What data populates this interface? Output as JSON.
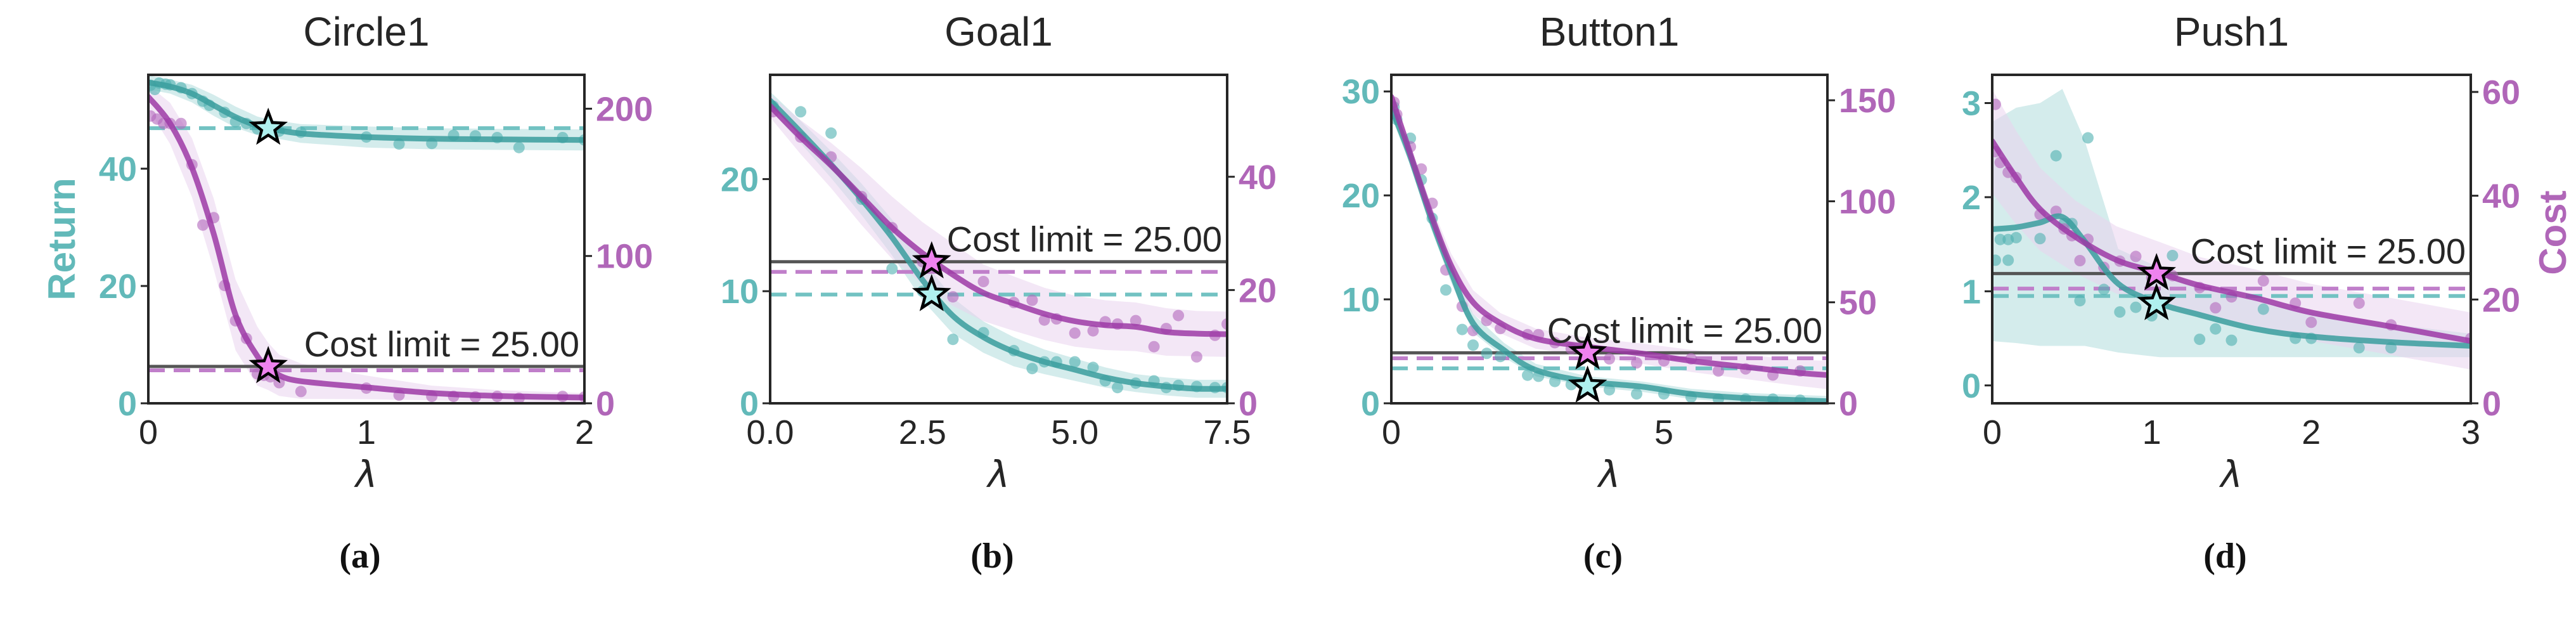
{
  "colors": {
    "return_line": "#3a9e9e",
    "return_point": "#4fb0b0",
    "return_band": "#b8e0df",
    "return_dashed": "#72c2c2",
    "return_axis": "#62b9b9",
    "cost_line": "#9c3aa6",
    "cost_point": "#b367bd",
    "cost_band": "#ead3ee",
    "cost_dashed": "#c07fca",
    "cost_axis": "#b066b8",
    "limit_line": "#555555",
    "star_return": "#aff0ee",
    "star_cost": "#ee82ee",
    "frame": "#262626"
  },
  "chart_data": [
    {
      "type": "line",
      "title": "Circle1",
      "caption": "(a)",
      "xlabel": "λ",
      "ylabel_left": "Return",
      "ylabel_right": "",
      "xlim": [
        0,
        2
      ],
      "ylim_left": [
        0,
        56
      ],
      "ylim_right": [
        0,
        223
      ],
      "xticks": [
        0,
        1,
        2
      ],
      "xtick_labels": [
        "0",
        "1",
        "2"
      ],
      "yticks_left": [
        0,
        20,
        40
      ],
      "yticks_right": [
        0,
        100,
        200
      ],
      "cost_limit": 25,
      "cost_limit_label": "Cost limit = 25.00",
      "return_threshold": 46.9,
      "cost_threshold": 22.4,
      "star": {
        "x": 0.55,
        "return": 46.9,
        "cost": 25
      },
      "series": [
        {
          "name": "Return",
          "axis": "left",
          "x": [
            0,
            0.1,
            0.2,
            0.3,
            0.4,
            0.5,
            0.55,
            0.7,
            1.0,
            1.3,
            1.6,
            2.0
          ],
          "y": [
            54.7,
            54.0,
            52.8,
            50.8,
            48.8,
            47.3,
            46.9,
            46.0,
            45.4,
            45.1,
            45.0,
            44.9
          ],
          "band": [
            1.2,
            1.2,
            1.5,
            1.8,
            1.8,
            1.6,
            1.5,
            1.6,
            1.8,
            1.8,
            1.8,
            1.8
          ],
          "points_x": [
            0.01,
            0.03,
            0.05,
            0.08,
            0.1,
            0.15,
            0.2,
            0.25,
            0.28,
            0.35,
            0.4,
            0.45,
            0.5,
            0.6,
            0.7,
            1.0,
            1.15,
            1.3,
            1.4,
            1.5,
            1.6,
            1.7,
            1.9,
            2.0
          ],
          "points_y": [
            54.2,
            53.5,
            54.6,
            54.4,
            54.3,
            53.8,
            52.8,
            51.5,
            50.8,
            49.6,
            48.0,
            47.7,
            46.8,
            46.4,
            46.2,
            45.4,
            44.2,
            44.3,
            45.7,
            45.6,
            45.3,
            43.6,
            45.3,
            44.9
          ]
        },
        {
          "name": "Cost",
          "axis": "right",
          "x": [
            0,
            0.1,
            0.2,
            0.3,
            0.4,
            0.5,
            0.55,
            0.6,
            0.7,
            1.0,
            1.3,
            1.6,
            2.0
          ],
          "y": [
            208,
            190,
            160,
            115,
            60,
            32,
            25,
            19,
            15,
            10.8,
            7,
            5,
            3.9
          ],
          "band": [
            8,
            14,
            20,
            24,
            24,
            20,
            16,
            14,
            12,
            8,
            5,
            4,
            3
          ],
          "points_x": [
            0.01,
            0.04,
            0.07,
            0.1,
            0.15,
            0.2,
            0.25,
            0.3,
            0.35,
            0.4,
            0.45,
            0.5,
            0.53,
            0.56,
            0.6,
            0.7,
            1.0,
            1.15,
            1.3,
            1.4,
            1.5,
            1.6,
            1.7,
            1.9,
            2.0
          ],
          "points_y": [
            195,
            193,
            190,
            190,
            190,
            162,
            121,
            126,
            80,
            56,
            44,
            20,
            19,
            18,
            14,
            8,
            10.3,
            5.6,
            4.7,
            4.7,
            4.3,
            4.7,
            3.4,
            4.7,
            4.3
          ]
        }
      ]
    },
    {
      "type": "line",
      "title": "Goal1",
      "caption": "(b)",
      "xlabel": "λ",
      "ylabel_left": "",
      "ylabel_right": "",
      "xlim": [
        0,
        7.5
      ],
      "ylim_left": [
        0,
        29.3
      ],
      "ylim_right": [
        0,
        58
      ],
      "xticks": [
        0,
        2.5,
        5,
        7.5
      ],
      "xtick_labels": [
        "0.0",
        "2.5",
        "5.0",
        "7.5"
      ],
      "yticks_left": [
        0,
        10,
        20
      ],
      "yticks_right": [
        0,
        20,
        40
      ],
      "cost_limit": 25,
      "cost_limit_label": "Cost limit = 25.00",
      "return_threshold": 9.7,
      "cost_threshold": 23.2,
      "star": {
        "x": 2.65,
        "return": 9.7,
        "cost": 25
      },
      "series": [
        {
          "name": "Return",
          "axis": "left",
          "x": [
            0,
            0.5,
            1.0,
            1.5,
            2.0,
            2.5,
            3.0,
            3.5,
            4.0,
            4.5,
            5.0,
            5.5,
            6.0,
            6.5,
            7.0,
            7.5
          ],
          "y": [
            27.0,
            24.2,
            21.3,
            18.2,
            14.8,
            11.0,
            7.8,
            5.9,
            4.6,
            3.7,
            3.0,
            2.3,
            1.8,
            1.5,
            1.3,
            1.3
          ],
          "band": [
            0.8,
            1.0,
            1.2,
            1.4,
            1.6,
            1.8,
            1.6,
            1.4,
            1.3,
            1.1,
            1.0,
            0.9,
            0.8,
            0.8,
            0.8,
            0.8
          ],
          "points_x": [
            0.05,
            0.5,
            1.0,
            1.5,
            2.0,
            2.5,
            3.0,
            3.5,
            4.0,
            4.3,
            4.5,
            4.7,
            5.0,
            5.3,
            5.5,
            5.7,
            6.0,
            6.3,
            6.5,
            6.7,
            7.0,
            7.3,
            7.5
          ],
          "points_y": [
            26.5,
            26.0,
            24.1,
            18.2,
            12.0,
            10.0,
            5.7,
            6.3,
            4.7,
            3.1,
            3.7,
            3.7,
            3.7,
            3.2,
            2.0,
            1.4,
            1.8,
            2.0,
            1.4,
            1.6,
            1.5,
            1.4,
            1.4
          ]
        },
        {
          "name": "Cost",
          "axis": "right",
          "x": [
            0,
            0.5,
            1.0,
            1.5,
            2.0,
            2.5,
            3.0,
            3.5,
            4.0,
            4.5,
            5.0,
            5.5,
            6.0,
            6.5,
            7.0,
            7.5
          ],
          "y": [
            52.5,
            47.0,
            42.0,
            36.5,
            31.0,
            26.5,
            22.7,
            19.5,
            17.6,
            15.8,
            14.5,
            13.8,
            13.5,
            12.6,
            12.3,
            12.2
          ],
          "band": [
            2,
            3,
            4,
            5,
            5.5,
            5.5,
            5.5,
            5,
            4.8,
            4.6,
            4.5,
            4.4,
            4.3,
            4.2,
            4.0,
            4.0
          ],
          "points_x": [
            0.05,
            0.5,
            1.0,
            1.5,
            2.0,
            2.5,
            3.0,
            3.5,
            4.0,
            4.3,
            4.5,
            4.7,
            5.0,
            5.3,
            5.5,
            5.7,
            6.0,
            6.3,
            6.5,
            6.7,
            7.0,
            7.3,
            7.5
          ],
          "points_y": [
            51.5,
            47.0,
            43.5,
            36.5,
            31.0,
            25.0,
            18.8,
            21.5,
            17.8,
            18.2,
            14.7,
            14.9,
            12.4,
            12.8,
            14.4,
            14.0,
            14.6,
            10.0,
            13.2,
            15.5,
            8.2,
            12.0,
            14.0
          ]
        }
      ]
    },
    {
      "type": "line",
      "title": "Button1",
      "caption": "(c)",
      "xlabel": "λ",
      "ylabel_left": "",
      "ylabel_right": "",
      "xlim": [
        0,
        8
      ],
      "ylim_left": [
        0,
        31.6
      ],
      "ylim_right": [
        0,
        162.6
      ],
      "xticks": [
        0,
        5
      ],
      "xtick_labels": [
        "0",
        "5"
      ],
      "yticks_left": [
        0,
        10,
        20,
        30
      ],
      "yticks_right": [
        0,
        50,
        100,
        150
      ],
      "cost_limit": 25,
      "cost_limit_label": "Cost limit = 25.00",
      "return_threshold": 3.36,
      "cost_threshold": 22.3,
      "star": {
        "x": 3.6,
        "return": 1.66,
        "cost": 25
      },
      "series": [
        {
          "name": "Return",
          "axis": "left",
          "x": [
            0,
            0.33,
            0.72,
            1.1,
            1.5,
            2.07,
            2.65,
            3.6,
            4.6,
            5.5,
            6.5,
            7.5,
            8.0
          ],
          "y": [
            28.4,
            24.0,
            17.9,
            12.6,
            7.7,
            5.1,
            3.2,
            2.1,
            1.6,
            0.9,
            0.5,
            0.3,
            0.2
          ],
          "band": [
            0.8,
            0.9,
            1.0,
            1.0,
            0.9,
            0.7,
            0.6,
            0.5,
            0.5,
            0.5,
            0.5,
            0.5,
            0.5
          ],
          "points_x": [
            0.05,
            0.1,
            0.35,
            0.55,
            0.75,
            1.0,
            1.3,
            1.5,
            1.75,
            2.0,
            2.5,
            2.7,
            3.0,
            3.3,
            3.6,
            4.0,
            4.5,
            5.0,
            5.5,
            6.0,
            6.5,
            7.0,
            7.5
          ],
          "points_y": [
            28.5,
            27.3,
            25.5,
            21.5,
            17.8,
            10.9,
            7.1,
            5.6,
            4.8,
            4.5,
            2.7,
            2.6,
            2.1,
            1.8,
            1.7,
            1.3,
            0.9,
            0.9,
            0.6,
            0.4,
            0.4,
            0.4,
            0.3
          ]
        },
        {
          "name": "Cost",
          "axis": "right",
          "x": [
            0,
            0.33,
            0.72,
            1.1,
            1.5,
            2.0,
            2.65,
            3.6,
            4.6,
            5.5,
            6.5,
            7.5,
            8.0
          ],
          "y": [
            151.7,
            125,
            94,
            68,
            50,
            39.7,
            32,
            28,
            24.6,
            21,
            18,
            15,
            14
          ],
          "band": [
            3,
            4,
            5,
            6,
            6,
            5,
            5,
            4.5,
            5,
            5.5,
            6,
            6.5,
            7
          ],
          "points_x": [
            0.05,
            0.1,
            0.35,
            0.55,
            0.75,
            1.0,
            1.3,
            1.5,
            1.75,
            2.0,
            2.5,
            2.7,
            3.0,
            3.3,
            3.6,
            4.0,
            4.5,
            5.0,
            5.5,
            6.0,
            6.5,
            7.0,
            7.5
          ],
          "points_y": [
            149,
            143,
            127,
            116,
            99,
            66,
            48,
            36,
            41,
            37,
            34,
            34,
            30,
            27,
            27,
            22,
            20,
            21,
            22,
            16,
            17,
            14,
            16
          ]
        }
      ]
    },
    {
      "type": "line",
      "title": "Push1",
      "caption": "(d)",
      "xlabel": "λ",
      "ylabel_left": "",
      "ylabel_right": "Cost",
      "xlim": [
        0,
        3
      ],
      "ylim_left": [
        -0.19,
        3.3
      ],
      "ylim_right": [
        0,
        63.3
      ],
      "xticks": [
        0,
        1,
        2,
        3
      ],
      "xtick_labels": [
        "0",
        "1",
        "2",
        "3"
      ],
      "yticks_left": [
        0,
        1,
        2,
        3
      ],
      "yticks_right": [
        0,
        20,
        40,
        60
      ],
      "cost_limit": 25,
      "cost_limit_label": "Cost limit = 25.00",
      "return_threshold": 0.95,
      "cost_threshold": 22.1,
      "star": {
        "x": 1.03,
        "return": 0.87,
        "cost": 25
      },
      "series": [
        {
          "name": "Return",
          "axis": "left",
          "x": [
            0,
            0.15,
            0.3,
            0.44,
            0.58,
            0.79,
            1.05,
            1.3,
            1.65,
            2.0,
            2.5,
            3.0
          ],
          "y": [
            1.66,
            1.68,
            1.73,
            1.79,
            1.53,
            1.08,
            0.87,
            0.75,
            0.6,
            0.52,
            0.46,
            0.42
          ],
          "band_low": [
            0.47,
            0.45,
            0.42,
            0.42,
            0.42,
            0.35,
            0.3,
            0.3,
            0.3,
            0.3,
            0.3,
            0.3
          ],
          "band_high": [
            2.8,
            2.95,
            3.0,
            3.15,
            2.6,
            1.45,
            1.25,
            1.05,
            0.9,
            0.78,
            0.65,
            0.55
          ],
          "points_x": [
            0.02,
            0.05,
            0.1,
            0.1,
            0.15,
            0.3,
            0.4,
            0.45,
            0.5,
            0.55,
            0.6,
            0.7,
            0.8,
            0.9,
            1.0,
            1.13,
            1.3,
            1.4,
            1.5,
            1.7,
            1.9,
            2.0,
            2.3,
            2.5
          ],
          "points_y": [
            1.33,
            1.55,
            1.33,
            1.55,
            1.57,
            1.56,
            2.44,
            1.72,
            1.72,
            0.9,
            2.63,
            1.02,
            0.78,
            0.83,
            0.74,
            1.38,
            0.49,
            0.6,
            0.48,
            0.81,
            0.5,
            0.5,
            0.4,
            0.4
          ]
        },
        {
          "name": "Cost",
          "axis": "right",
          "x": [
            0,
            0.15,
            0.3,
            0.52,
            0.78,
            1.04,
            1.3,
            1.65,
            2.0,
            2.5,
            3.0
          ],
          "y": [
            50.5,
            43.5,
            37.4,
            32.1,
            27.6,
            25.2,
            22.7,
            20.3,
            17.5,
            14.8,
            12.0
          ],
          "band": [
            10,
            9,
            8,
            7,
            6.5,
            6,
            5.5,
            5.5,
            5.5,
            5.5,
            5.5
          ],
          "points_x": [
            0.02,
            0.02,
            0.05,
            0.1,
            0.15,
            0.3,
            0.4,
            0.45,
            0.5,
            0.55,
            0.6,
            0.7,
            0.8,
            0.9,
            1.0,
            1.13,
            1.3,
            1.4,
            1.5,
            1.7,
            1.9,
            2.0,
            2.3,
            2.5,
            3.0
          ],
          "points_y": [
            57.6,
            48.5,
            46.4,
            44.5,
            43.5,
            36.4,
            37.0,
            33.6,
            32.3,
            27.5,
            31.6,
            26.2,
            27.4,
            28.3,
            24.2,
            24.6,
            22.3,
            18.4,
            20.5,
            23.6,
            19.3,
            15.6,
            19.3,
            15.1,
            12.5
          ]
        }
      ]
    }
  ]
}
